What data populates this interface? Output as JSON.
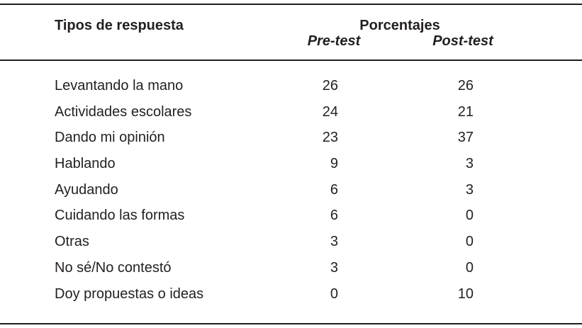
{
  "colors": {
    "background": "#ffffff",
    "text": "#231f20",
    "rule": "#1e1e1e"
  },
  "table": {
    "header": {
      "types_label": "Tipos de respuesta",
      "percentages_label": "Porcentajes",
      "pre_label": "Pre-test",
      "post_label": "Post-test"
    },
    "rows": [
      {
        "label": "Levantando la mano",
        "pre": "26",
        "post": "26"
      },
      {
        "label": "Actividades escolares",
        "pre": "24",
        "post": "21"
      },
      {
        "label": "Dando mi opinión",
        "pre": "23",
        "post": "37"
      },
      {
        "label": "Hablando",
        "pre": "9",
        "post": "3"
      },
      {
        "label": "Ayudando",
        "pre": "6",
        "post": "3"
      },
      {
        "label": "Cuidando las formas",
        "pre": "6",
        "post": "0"
      },
      {
        "label": "Otras",
        "pre": "3",
        "post": "0"
      },
      {
        "label": "No sé/No contestó",
        "pre": "3",
        "post": "0"
      },
      {
        "label": "Doy propuestas o ideas",
        "pre": "0",
        "post": "10"
      }
    ]
  }
}
